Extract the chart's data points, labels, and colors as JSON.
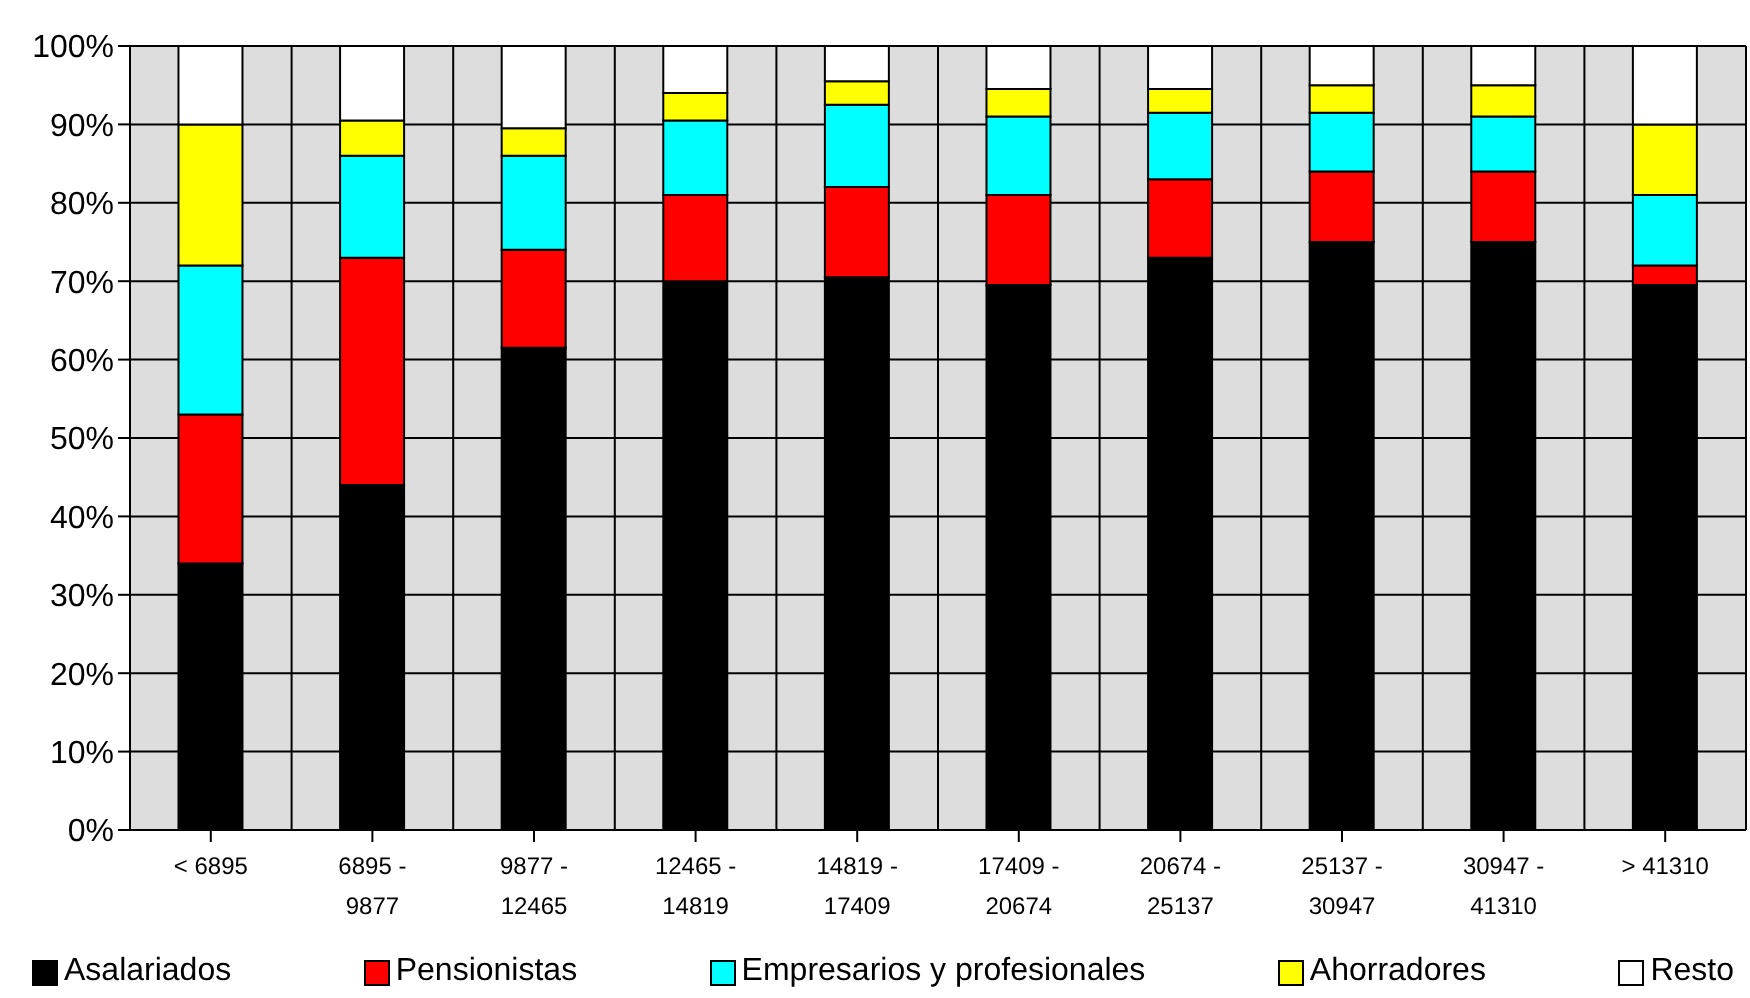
{
  "chart_data": {
    "type": "bar",
    "stacked": true,
    "categories": [
      "< 6895",
      "6895 - 9877",
      "9877 - 12465",
      "12465 - 14819",
      "14819 - 17409",
      "17409 - 20674",
      "20674 - 25137",
      "25137 - 30947",
      "30947 - 41310",
      "> 41310"
    ],
    "series": [
      {
        "name": "Asalariados",
        "color": "#000000",
        "values": [
          34,
          44,
          61.5,
          70,
          70.5,
          69.5,
          73,
          75,
          75,
          69.5
        ]
      },
      {
        "name": "Pensionistas",
        "color": "#ff0000",
        "values": [
          19,
          29,
          12.5,
          11,
          11.5,
          11.5,
          10,
          9,
          9,
          2.5
        ]
      },
      {
        "name": "Empresarios y profesionales",
        "color": "#00ffff",
        "values": [
          19,
          13,
          12,
          9.5,
          10.5,
          10,
          8.5,
          7.5,
          7,
          9
        ]
      },
      {
        "name": "Ahorradores",
        "color": "#ffff00",
        "values": [
          18,
          4.5,
          3.5,
          3.5,
          3,
          3.5,
          3,
          3.5,
          4,
          9
        ]
      },
      {
        "name": "Resto",
        "color": "#ffffff",
        "values": [
          10,
          9.5,
          10.5,
          6,
          4.5,
          5.5,
          5.5,
          5,
          5,
          10
        ]
      }
    ],
    "ylim": [
      0,
      100
    ],
    "yticks": [
      {
        "value": 0,
        "label": "0%"
      },
      {
        "value": 10,
        "label": "10%"
      },
      {
        "value": 20,
        "label": "20%"
      },
      {
        "value": 30,
        "label": "30%"
      },
      {
        "value": 40,
        "label": "40%"
      },
      {
        "value": 50,
        "label": "50%"
      },
      {
        "value": 60,
        "label": "60%"
      },
      {
        "value": 70,
        "label": "70%"
      },
      {
        "value": 80,
        "label": "80%"
      },
      {
        "value": 90,
        "label": "90%"
      },
      {
        "value": 100,
        "label": "100%"
      }
    ],
    "grid": true,
    "legend": "bottom"
  }
}
